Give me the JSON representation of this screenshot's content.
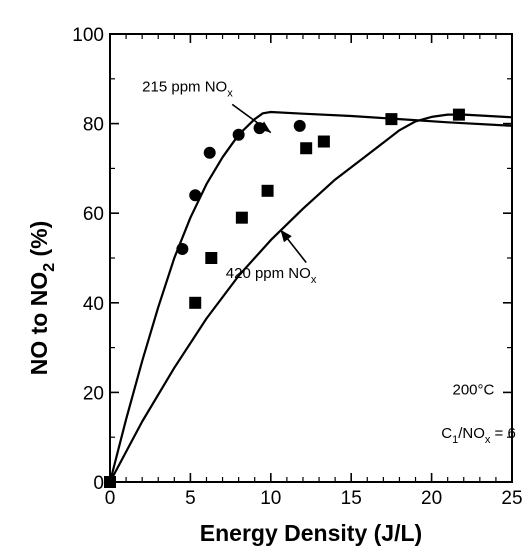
{
  "chart_data": {
    "type": "scatter",
    "xlabel": "Energy Density (J/L)",
    "ylabel_parts": [
      "NO to NO",
      "2",
      " (%)"
    ],
    "xlim": [
      0,
      25
    ],
    "ylim": [
      0,
      100
    ],
    "x_ticks": [
      "0",
      "5",
      "10",
      "15",
      "20",
      "25"
    ],
    "y_ticks": [
      "0",
      "20",
      "40",
      "60",
      "80",
      "100"
    ],
    "x_tick_values": [
      0,
      5,
      10,
      15,
      20,
      25
    ],
    "y_tick_values": [
      0,
      20,
      40,
      60,
      80,
      100
    ],
    "series": [
      {
        "name": "215 ppm NOx",
        "marker": "circle",
        "points": [
          [
            0,
            0
          ],
          [
            4.5,
            52
          ],
          [
            5.3,
            64
          ],
          [
            6.2,
            73.5
          ],
          [
            8,
            77.5
          ],
          [
            9.3,
            79
          ],
          [
            11.8,
            79.5
          ]
        ]
      },
      {
        "name": "420 ppm NOx",
        "marker": "square",
        "points": [
          [
            0,
            0
          ],
          [
            5.3,
            40
          ],
          [
            6.3,
            50
          ],
          [
            8.2,
            59
          ],
          [
            9.8,
            65
          ],
          [
            12.2,
            74.5
          ],
          [
            13.3,
            76
          ],
          [
            17.5,
            81
          ],
          [
            21.7,
            82
          ]
        ]
      }
    ],
    "curves": [
      {
        "name": "215 ppm NOx",
        "points": [
          [
            0,
            0
          ],
          [
            1,
            14
          ],
          [
            2,
            27
          ],
          [
            3,
            39
          ],
          [
            4,
            50
          ],
          [
            5,
            59
          ],
          [
            6,
            66.5
          ],
          [
            7,
            72.5
          ],
          [
            8,
            77.5
          ],
          [
            9,
            81
          ],
          [
            9.5,
            82.3
          ],
          [
            10,
            82.6
          ],
          [
            12,
            82.2
          ],
          [
            15,
            81.7
          ],
          [
            18,
            81
          ],
          [
            21,
            80.3
          ],
          [
            25,
            79.5
          ]
        ]
      },
      {
        "name": "420 ppm NOx",
        "points": [
          [
            0,
            0
          ],
          [
            2,
            13.5
          ],
          [
            4,
            25.5
          ],
          [
            6,
            36.5
          ],
          [
            8,
            46
          ],
          [
            10,
            54
          ],
          [
            12,
            61
          ],
          [
            14,
            67.5
          ],
          [
            16,
            73
          ],
          [
            18,
            78.5
          ],
          [
            19,
            80.5
          ],
          [
            20,
            81.5
          ],
          [
            21,
            82
          ],
          [
            22,
            82
          ],
          [
            23,
            81.8
          ],
          [
            25,
            81.4
          ]
        ]
      }
    ],
    "annotations": [
      {
        "id": "label-215",
        "parts": [
          "215 ppm NO",
          "x"
        ],
        "x": 2.0,
        "y": 87.2,
        "arrow_from": [
          7.6,
          84.3
        ],
        "arrow_to": [
          10.0,
          78.0
        ]
      },
      {
        "id": "label-420",
        "parts": [
          "420 ppm NO",
          "x"
        ],
        "x": 7.2,
        "y": 45.5,
        "arrow_from": [
          12.2,
          49.0
        ],
        "arrow_to": [
          10.6,
          56.3
        ]
      },
      {
        "id": "label-temp",
        "parts": [
          "200°C"
        ],
        "x": 21.3,
        "y": 19.5
      },
      {
        "id": "label-ratio",
        "parts": [
          "C",
          "1",
          "/NO",
          "x",
          " = 6"
        ],
        "x": 20.6,
        "y": 9.8
      }
    ],
    "grid": false,
    "legend": "none"
  }
}
